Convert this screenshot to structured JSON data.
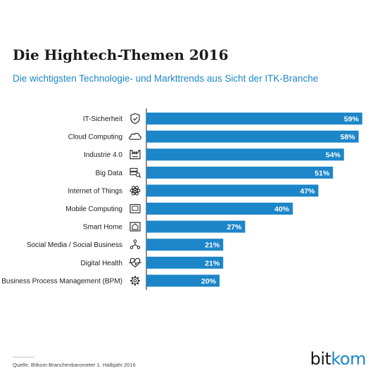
{
  "title": "Die Hightech-Themen 2016",
  "subtitle": "Die wichtigsten Technologie- und Markttrends aus Sicht der ITK-Branche",
  "source": "Quelle: Bitkom-Branchenbarometer 1. Halbjahr 2016",
  "logo": {
    "part1": "bit",
    "part2": "kom"
  },
  "colors": {
    "bar": "#1c86c9",
    "accent": "#1c86c9",
    "text": "#1a1a1a"
  },
  "chart_data": {
    "type": "bar",
    "orientation": "horizontal",
    "categories": [
      "IT-Sicherheit",
      "Cloud Computing",
      "Industrie 4.0",
      "Big Data",
      "Internet of Things",
      "Mobile Computing",
      "Smart Home",
      "Social Media / Social Business",
      "Digital Health",
      "Business Process Management (BPM)"
    ],
    "values": [
      59,
      58,
      54,
      51,
      47,
      40,
      27,
      21,
      21,
      20
    ],
    "value_labels": [
      "59%",
      "58%",
      "54%",
      "51%",
      "47%",
      "40%",
      "27%",
      "21%",
      "21%",
      "20%"
    ],
    "icons": [
      "shield-icon",
      "cloud-icon",
      "factory-icon",
      "database-search-icon",
      "atom-icon",
      "mobile-device-icon",
      "home-icon",
      "network-people-icon",
      "heart-pulse-icon",
      "gear-icon"
    ],
    "xlim": [
      0,
      60
    ],
    "grid": false,
    "legend": "none"
  }
}
